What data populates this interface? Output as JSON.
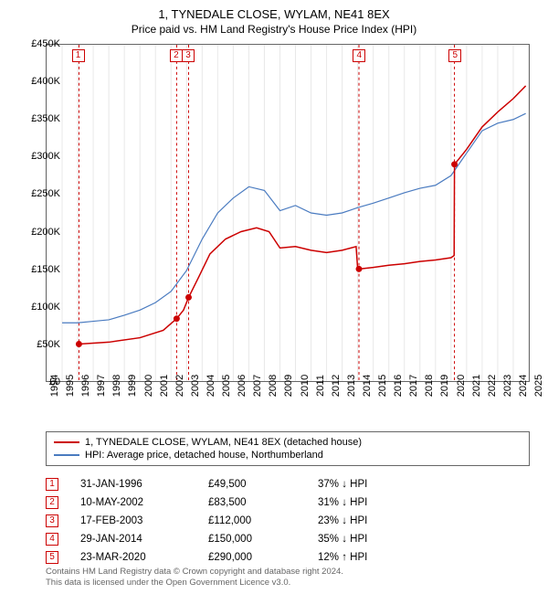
{
  "title": "1, TYNEDALE CLOSE, WYLAM, NE41 8EX",
  "subtitle": "Price paid vs. HM Land Registry's House Price Index (HPI)",
  "chart": {
    "type": "line",
    "xlim": [
      1994,
      2025
    ],
    "ylim": [
      0,
      450000
    ],
    "ytick_step": 50000,
    "yticks": [
      "£0",
      "£50K",
      "£100K",
      "£150K",
      "£200K",
      "£250K",
      "£300K",
      "£350K",
      "£400K",
      "£450K"
    ],
    "xticks": [
      1994,
      1995,
      1996,
      1997,
      1998,
      1999,
      2000,
      2001,
      2002,
      2003,
      2004,
      2005,
      2006,
      2007,
      2008,
      2009,
      2010,
      2011,
      2012,
      2013,
      2014,
      2015,
      2016,
      2017,
      2018,
      2019,
      2020,
      2021,
      2022,
      2023,
      2024,
      2025
    ],
    "grid_color": "#e8e8e8",
    "background_color": "#ffffff",
    "series": [
      {
        "name": "1, TYNEDALE CLOSE, WYLAM, NE41 8EX (detached house)",
        "color": "#cc0000",
        "linewidth": 1.5,
        "points": [
          [
            1996.08,
            49500
          ],
          [
            1998.0,
            52000
          ],
          [
            2000.0,
            58000
          ],
          [
            2001.5,
            68000
          ],
          [
            2002.36,
            83500
          ],
          [
            2002.8,
            95000
          ],
          [
            2003.13,
            112000
          ],
          [
            2003.8,
            140000
          ],
          [
            2004.5,
            170000
          ],
          [
            2005.5,
            190000
          ],
          [
            2006.5,
            200000
          ],
          [
            2007.5,
            205000
          ],
          [
            2008.3,
            200000
          ],
          [
            2009.0,
            178000
          ],
          [
            2010.0,
            180000
          ],
          [
            2011.0,
            175000
          ],
          [
            2012.0,
            172000
          ],
          [
            2013.0,
            175000
          ],
          [
            2013.9,
            180000
          ],
          [
            2014.0,
            150000
          ],
          [
            2014.08,
            150000
          ],
          [
            2015.0,
            152000
          ],
          [
            2016.0,
            155000
          ],
          [
            2017.0,
            157000
          ],
          [
            2018.0,
            160000
          ],
          [
            2019.0,
            162000
          ],
          [
            2020.0,
            165000
          ],
          [
            2020.2,
            168000
          ],
          [
            2020.22,
            290000
          ],
          [
            2021.0,
            310000
          ],
          [
            2022.0,
            340000
          ],
          [
            2023.0,
            360000
          ],
          [
            2024.0,
            378000
          ],
          [
            2024.8,
            395000
          ]
        ]
      },
      {
        "name": "HPI: Average price, detached house, Northumberland",
        "color": "#4a7bc0",
        "linewidth": 1.2,
        "points": [
          [
            1995.0,
            78000
          ],
          [
            1996.0,
            78000
          ],
          [
            1997.0,
            80000
          ],
          [
            1998.0,
            82000
          ],
          [
            1999.0,
            88000
          ],
          [
            2000.0,
            95000
          ],
          [
            2001.0,
            105000
          ],
          [
            2002.0,
            120000
          ],
          [
            2003.0,
            148000
          ],
          [
            2004.0,
            190000
          ],
          [
            2005.0,
            225000
          ],
          [
            2006.0,
            245000
          ],
          [
            2007.0,
            260000
          ],
          [
            2008.0,
            255000
          ],
          [
            2009.0,
            228000
          ],
          [
            2010.0,
            235000
          ],
          [
            2011.0,
            225000
          ],
          [
            2012.0,
            222000
          ],
          [
            2013.0,
            225000
          ],
          [
            2014.0,
            232000
          ],
          [
            2015.0,
            238000
          ],
          [
            2016.0,
            245000
          ],
          [
            2017.0,
            252000
          ],
          [
            2018.0,
            258000
          ],
          [
            2019.0,
            262000
          ],
          [
            2020.0,
            275000
          ],
          [
            2021.0,
            305000
          ],
          [
            2022.0,
            335000
          ],
          [
            2023.0,
            345000
          ],
          [
            2024.0,
            350000
          ],
          [
            2024.8,
            358000
          ]
        ]
      }
    ],
    "sale_markers": [
      {
        "n": "1",
        "x": 1996.08,
        "y": 49500
      },
      {
        "n": "2",
        "x": 2002.36,
        "y": 83500
      },
      {
        "n": "3",
        "x": 2003.13,
        "y": 112000
      },
      {
        "n": "4",
        "x": 2014.08,
        "y": 150000
      },
      {
        "n": "5",
        "x": 2020.22,
        "y": 290000
      }
    ]
  },
  "legend": [
    {
      "color": "#cc0000",
      "label": "1, TYNEDALE CLOSE, WYLAM, NE41 8EX (detached house)"
    },
    {
      "color": "#4a7bc0",
      "label": "HPI: Average price, detached house, Northumberland"
    }
  ],
  "sales": [
    {
      "n": "1",
      "date": "31-JAN-1996",
      "price": "£49,500",
      "diff": "37% ↓ HPI"
    },
    {
      "n": "2",
      "date": "10-MAY-2002",
      "price": "£83,500",
      "diff": "31% ↓ HPI"
    },
    {
      "n": "3",
      "date": "17-FEB-2003",
      "price": "£112,000",
      "diff": "23% ↓ HPI"
    },
    {
      "n": "4",
      "date": "29-JAN-2014",
      "price": "£150,000",
      "diff": "35% ↓ HPI"
    },
    {
      "n": "5",
      "date": "23-MAR-2020",
      "price": "£290,000",
      "diff": "12% ↑ HPI"
    }
  ],
  "footer": {
    "line1": "Contains HM Land Registry data © Crown copyright and database right 2024.",
    "line2": "This data is licensed under the Open Government Licence v3.0."
  }
}
